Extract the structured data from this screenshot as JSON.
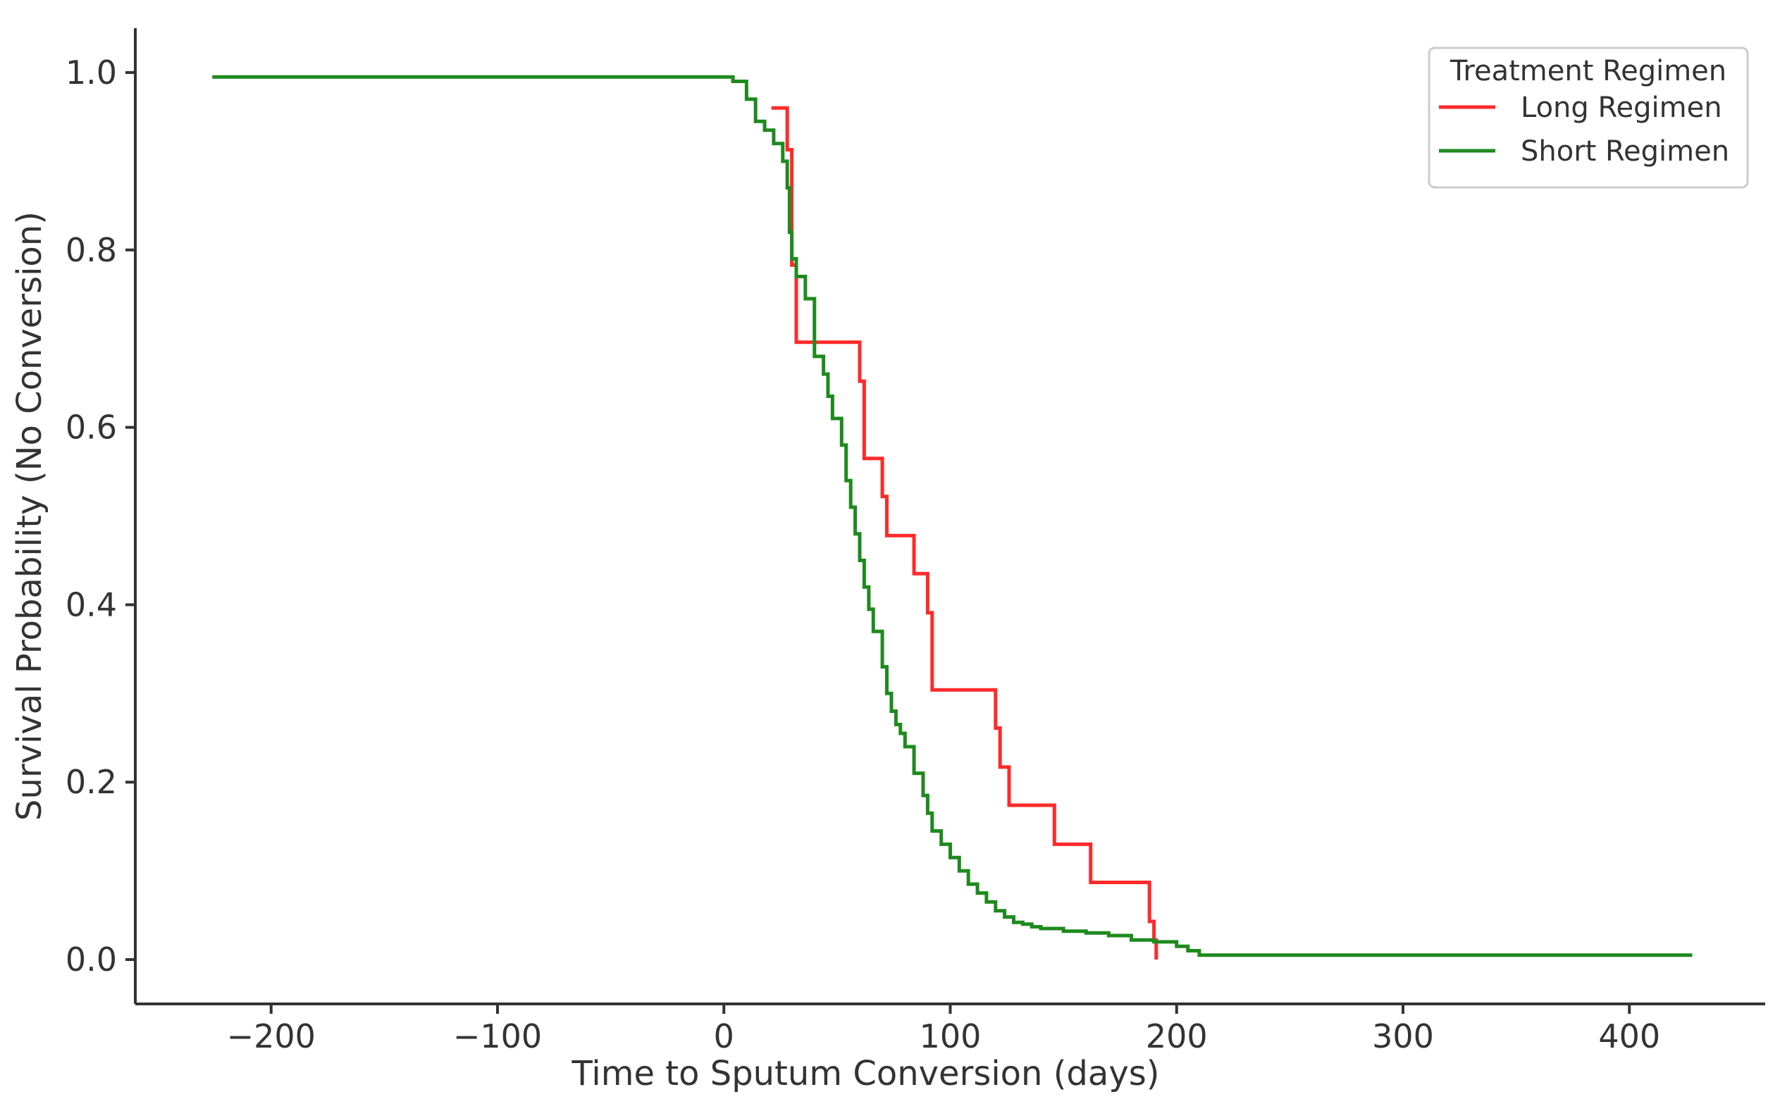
{
  "chart_data": {
    "type": "line",
    "step": true,
    "xlabel": "Time to Sputum Conversion (days)",
    "ylabel": "Survival Probability (No Conversion)",
    "xlim": [
      -260,
      460
    ],
    "ylim": [
      -0.05,
      1.05
    ],
    "xticks": [
      -200,
      -100,
      0,
      100,
      200,
      300,
      400
    ],
    "yticks": [
      0.0,
      0.2,
      0.4,
      0.6,
      0.8,
      1.0
    ],
    "xtick_labels": [
      "−200",
      "−100",
      "0",
      "100",
      "200",
      "300",
      "400"
    ],
    "ytick_labels": [
      "0.0",
      "0.2",
      "0.4",
      "0.6",
      "0.8",
      "1.0"
    ],
    "grid": false,
    "legend": {
      "title": "Treatment Regimen",
      "position": "top-right"
    },
    "series": [
      {
        "name": "Long Regimen",
        "color": "#ff2a2a",
        "x": [
          21,
          28,
          30,
          32,
          60,
          62,
          70,
          72,
          84,
          88,
          90,
          92,
          120,
          122,
          126,
          146,
          162,
          188,
          190,
          191
        ],
        "y": [
          0.96,
          0.913,
          0.783,
          0.696,
          0.652,
          0.565,
          0.522,
          0.478,
          0.435,
          0.435,
          0.391,
          0.304,
          0.261,
          0.217,
          0.174,
          0.13,
          0.087,
          0.043,
          0.022,
          0.0
        ]
      },
      {
        "name": "Short Regimen",
        "color": "#1e8a1e",
        "x": [
          -226,
          0,
          4,
          10,
          14,
          18,
          22,
          26,
          28,
          29,
          30,
          32,
          36,
          40,
          44,
          46,
          48,
          52,
          54,
          56,
          58,
          60,
          62,
          64,
          66,
          70,
          72,
          74,
          76,
          78,
          80,
          84,
          88,
          90,
          92,
          96,
          100,
          104,
          108,
          112,
          116,
          120,
          124,
          128,
          132,
          136,
          140,
          150,
          160,
          170,
          180,
          190,
          200,
          205,
          210,
          427
        ],
        "y": [
          0.995,
          0.995,
          0.99,
          0.97,
          0.945,
          0.935,
          0.92,
          0.9,
          0.87,
          0.82,
          0.79,
          0.77,
          0.745,
          0.68,
          0.66,
          0.635,
          0.61,
          0.58,
          0.54,
          0.51,
          0.48,
          0.45,
          0.42,
          0.395,
          0.37,
          0.33,
          0.3,
          0.28,
          0.265,
          0.255,
          0.24,
          0.21,
          0.185,
          0.165,
          0.145,
          0.13,
          0.115,
          0.1,
          0.085,
          0.075,
          0.065,
          0.055,
          0.048,
          0.042,
          0.04,
          0.037,
          0.035,
          0.032,
          0.03,
          0.027,
          0.022,
          0.02,
          0.015,
          0.01,
          0.005,
          0.003
        ]
      }
    ]
  }
}
